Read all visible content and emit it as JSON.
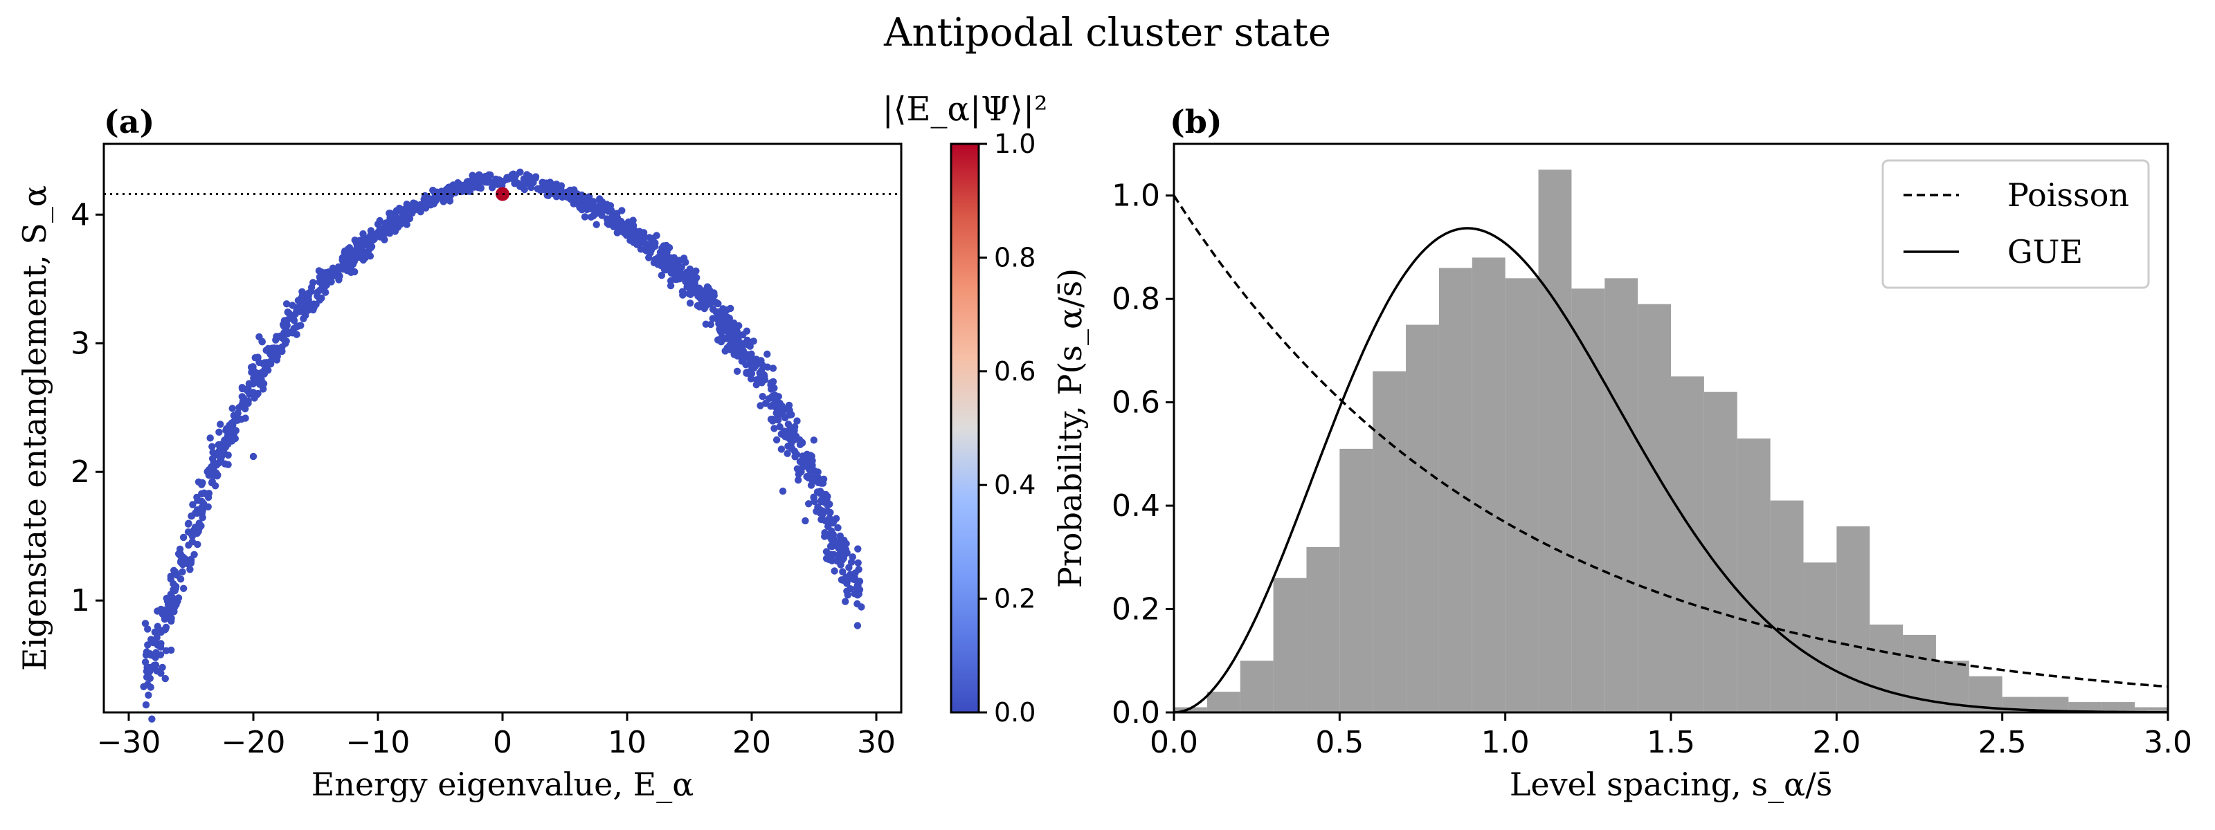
{
  "figure": {
    "title": "Antipodal cluster state"
  },
  "chart_data": [
    {
      "panel_label": "(a)",
      "type": "scatter",
      "title": "",
      "xlabel": "Energy eigenvalue,  E_α",
      "ylabel": "Eigenstate entanglement,  S_α",
      "xlim": [
        -32,
        32
      ],
      "ylim": [
        0.13,
        4.55
      ],
      "xticks": [
        -30,
        -20,
        -10,
        0,
        10,
        20,
        30
      ],
      "xtick_labels": [
        "−30",
        "−20",
        "−10",
        "0",
        "10",
        "20",
        "30"
      ],
      "yticks": [
        1,
        2,
        3,
        4
      ],
      "ytick_labels": [
        "1",
        "2",
        "3",
        "4"
      ],
      "color_value_name": "|⟨E_α|Ψ⟩|²",
      "envelope": {
        "x": [
          -29,
          -27,
          -25,
          -23,
          -20,
          -17,
          -14,
          -10,
          -6,
          -2,
          0,
          2,
          6,
          10,
          14,
          17,
          20,
          23,
          25,
          27,
          29
        ],
        "y": [
          0.35,
          0.85,
          1.5,
          2.05,
          2.7,
          3.15,
          3.5,
          3.85,
          4.1,
          4.26,
          4.28,
          4.26,
          4.12,
          3.9,
          3.58,
          3.25,
          2.85,
          2.35,
          1.9,
          1.4,
          1.0
        ]
      },
      "outliers": [
        {
          "x": -28.8,
          "y": 0.33
        },
        {
          "x": -27.3,
          "y": 0.48
        },
        {
          "x": -26.7,
          "y": 0.88
        },
        {
          "x": -26.0,
          "y": 1.02
        },
        {
          "x": -25.2,
          "y": 1.43
        },
        {
          "x": -24.2,
          "y": 1.58
        },
        {
          "x": -20.0,
          "y": 2.12
        },
        {
          "x": 22.5,
          "y": 1.85
        },
        {
          "x": 24.3,
          "y": 1.62
        },
        {
          "x": 26.0,
          "y": 1.38
        },
        {
          "x": 27.2,
          "y": 1.38
        },
        {
          "x": 27.8,
          "y": 1.18
        },
        {
          "x": 28.5,
          "y": 1.12
        },
        {
          "x": 28.8,
          "y": 0.95
        }
      ],
      "highlight_point": {
        "x": 0.0,
        "y": 4.16,
        "overlap": 1.0
      },
      "reference_line": {
        "y": 4.16,
        "style": "dotted"
      },
      "colorbar": {
        "label": "|⟨E_α|Ψ⟩|²",
        "range": [
          0.0,
          1.0
        ],
        "ticks": [
          0.0,
          0.2,
          0.4,
          0.6,
          0.8,
          1.0
        ],
        "tick_labels": [
          "0.0",
          "0.2",
          "0.4",
          "0.6",
          "0.8",
          "1.0"
        ],
        "colormap": "coolwarm"
      },
      "colors": {
        "points": "#3b4cc0",
        "highlight": "#b40426"
      }
    },
    {
      "panel_label": "(b)",
      "type": "bar",
      "title": "",
      "xlabel": "Level spacing,  s_α/s̄",
      "ylabel": "Probability,  P(s_α/s̄)",
      "xlim": [
        0.0,
        3.0
      ],
      "ylim": [
        0.0,
        1.1
      ],
      "xticks": [
        0.0,
        0.5,
        1.0,
        1.5,
        2.0,
        2.5,
        3.0
      ],
      "xtick_labels": [
        "0.0",
        "0.5",
        "1.0",
        "1.5",
        "2.0",
        "2.5",
        "3.0"
      ],
      "yticks": [
        0.0,
        0.2,
        0.4,
        0.6,
        0.8,
        1.0
      ],
      "ytick_labels": [
        "0.0",
        "0.2",
        "0.4",
        "0.6",
        "0.8",
        "1.0"
      ],
      "bin_width": 0.1,
      "bin_starts": [
        0.0,
        0.1,
        0.2,
        0.3,
        0.4,
        0.5,
        0.6,
        0.7,
        0.8,
        0.9,
        1.0,
        1.1,
        1.2,
        1.3,
        1.4,
        1.5,
        1.6,
        1.7,
        1.8,
        1.9,
        2.0,
        2.1,
        2.2,
        2.3,
        2.4,
        2.5,
        2.6,
        2.7,
        2.8,
        2.9
      ],
      "values": [
        0.01,
        0.04,
        0.1,
        0.26,
        0.32,
        0.51,
        0.66,
        0.75,
        0.86,
        0.88,
        0.84,
        1.05,
        0.82,
        0.84,
        0.79,
        0.65,
        0.62,
        0.53,
        0.41,
        0.29,
        0.36,
        0.17,
        0.15,
        0.1,
        0.07,
        0.03,
        0.03,
        0.02,
        0.02,
        0.01
      ],
      "series": [
        {
          "name": "Poisson",
          "style": "dashed",
          "formula": "exp(-s)"
        },
        {
          "name": "GUE",
          "style": "solid",
          "formula": "(32/pi^2) s^2 exp(-4 s^2/pi)"
        }
      ],
      "legend": {
        "position": "top-right",
        "entries": [
          "Poisson",
          "GUE"
        ]
      },
      "colors": {
        "bars": "#a0a0a0",
        "lines": "#000000"
      }
    }
  ]
}
